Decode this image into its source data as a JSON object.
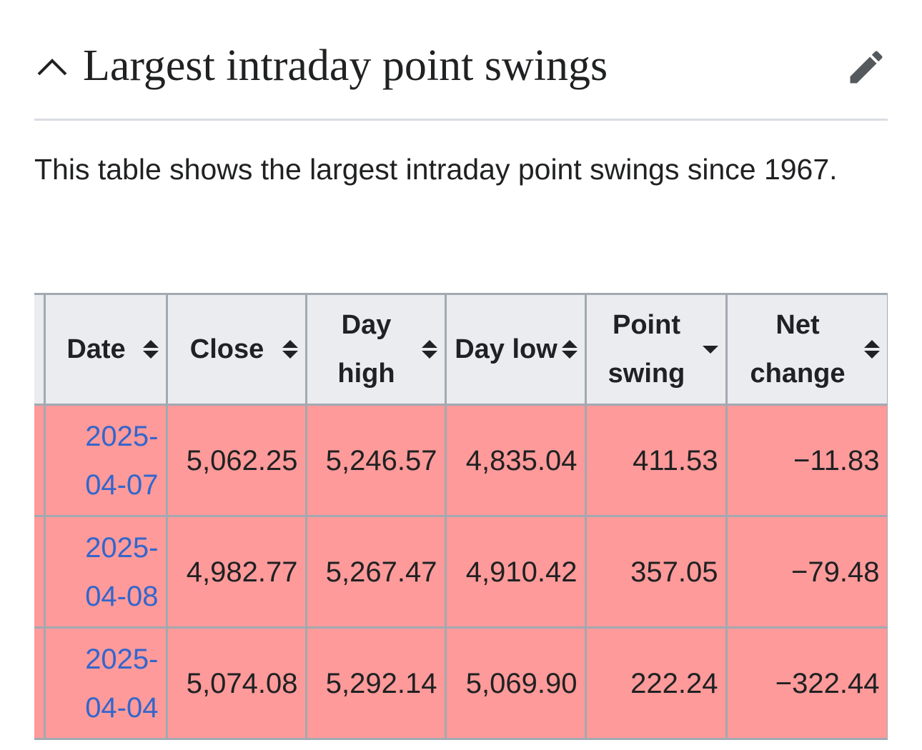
{
  "header": {
    "title": "Largest intraday point swings"
  },
  "intro": "This table shows the largest intraday point swings since 1967.",
  "table": {
    "columns": [
      "Date",
      "Close",
      "Day high",
      "Day low",
      "Point swing",
      "Net change"
    ],
    "rows": [
      [
        "2025-04-07",
        "5,062.25",
        "5,246.57",
        "4,835.04",
        "411.53",
        "−11.83"
      ],
      [
        "2025-04-08",
        "4,982.77",
        "5,267.47",
        "4,910.42",
        "357.05",
        "−79.48"
      ],
      [
        "2025-04-04",
        "5,074.08",
        "5,292.14",
        "5,069.90",
        "222.24",
        "−322.44"
      ]
    ]
  }
}
